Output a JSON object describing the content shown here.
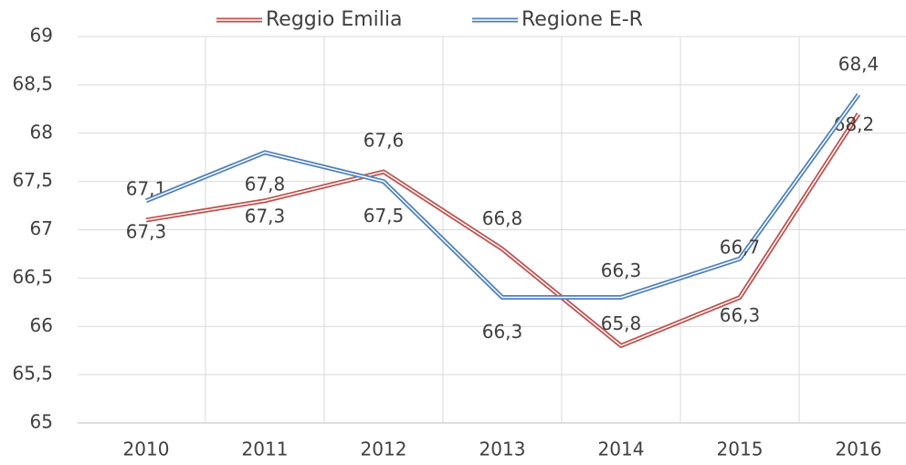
{
  "chart_data": {
    "type": "line",
    "categories": [
      "2010",
      "2011",
      "2012",
      "2013",
      "2014",
      "2015",
      "2016"
    ],
    "series": [
      {
        "name": "Reggio Emilia",
        "color": "#c0504d",
        "values": [
          67.1,
          67.3,
          67.6,
          66.8,
          65.8,
          66.3,
          68.2
        ],
        "value_labels": [
          "67,1",
          "67,3",
          "67,6",
          "66,8",
          "65,8",
          "66,3",
          "68,2"
        ]
      },
      {
        "name": "Regione E-R",
        "color": "#4f81bd",
        "values": [
          67.3,
          67.8,
          67.5,
          66.3,
          66.3,
          66.7,
          68.4
        ],
        "value_labels": [
          "67,3",
          "67,8",
          "67,5",
          "66,3",
          "66,3",
          "66,7",
          "68,4"
        ]
      }
    ],
    "ylim": [
      65,
      69
    ],
    "yticks": [
      65,
      {
        "value": 65.5,
        "label": "65,5"
      },
      66,
      {
        "value": 66.5,
        "label": "66,5"
      },
      67,
      {
        "value": 67.5,
        "label": "67,5"
      },
      68,
      {
        "value": 68.5,
        "label": "68,5"
      },
      69
    ],
    "grid": true,
    "legend": "top"
  }
}
